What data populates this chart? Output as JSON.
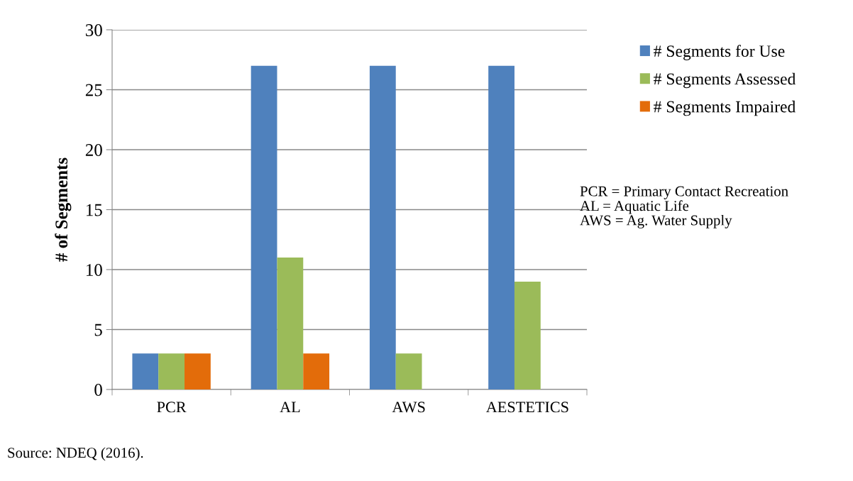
{
  "chart_data": {
    "type": "bar",
    "ylabel": "# of Segments",
    "categories": [
      "PCR",
      "AL",
      "AWS",
      "AESTETICS"
    ],
    "series": [
      {
        "name": "# Segments for Use",
        "color": "#4f81bd",
        "values": [
          3,
          27,
          27,
          27
        ]
      },
      {
        "name": "# Segments Assessed",
        "color": "#9bbb59",
        "values": [
          3,
          11,
          3,
          9
        ]
      },
      {
        "name": "# Segments Impaired",
        "color": "#e36c0a",
        "values": [
          3,
          3,
          0,
          0
        ]
      }
    ],
    "ylim": [
      0,
      30
    ],
    "yticks": [
      0,
      5,
      10,
      15,
      20,
      25,
      30
    ],
    "grid": "y",
    "legend": "right",
    "annotations": [
      "PCR = Primary Contact Recreation\nAL = Aquatic Life\nAWS = Ag. Water Supply",
      "Source: NDEQ (2016)."
    ]
  }
}
